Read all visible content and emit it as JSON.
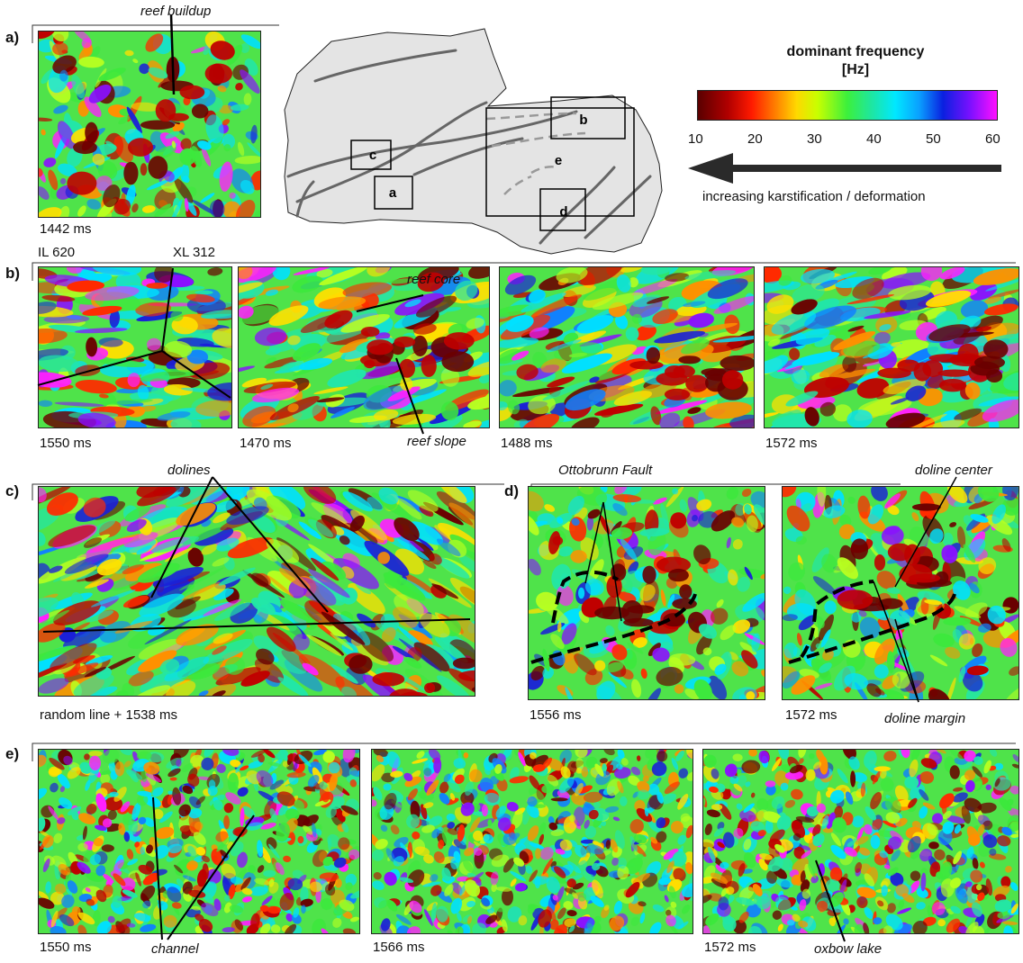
{
  "panel_labels": {
    "a": "a)",
    "b": "b)",
    "c": "c)",
    "d": "d)",
    "e": "e)"
  },
  "section_a": {
    "annotation": "reef buildup",
    "time": "1442 ms",
    "map": {
      "boxes": {
        "a": "a",
        "b": "b",
        "c": "c",
        "d": "d",
        "e": "e"
      }
    }
  },
  "colorbar": {
    "title_line1": "dominant frequency",
    "title_line2": "[Hz]",
    "ticks": [
      "10",
      "20",
      "30",
      "40",
      "50",
      "60"
    ],
    "arrow_caption": "increasing karstification / deformation"
  },
  "section_b": {
    "inline": "IL 620",
    "crossline": "XL 312",
    "times": [
      "1550 ms",
      "1470 ms",
      "1488 ms",
      "1572 ms"
    ],
    "annotations": {
      "core": "reef core",
      "slope": "reef slope"
    }
  },
  "section_c": {
    "annotation": "dolines",
    "time": "random line + 1538 ms"
  },
  "section_d": {
    "fault": "Ottobrunn Fault",
    "center": "doline center",
    "margin": "doline margin",
    "times": [
      "1556 ms",
      "1572 ms"
    ]
  },
  "section_e": {
    "times": [
      "1550 ms",
      "1566 ms",
      "1572 ms"
    ],
    "channel": "channel",
    "oxbow": "oxbow lake"
  },
  "palette": [
    "#6a0000",
    "#c00000",
    "#ff2a00",
    "#ff9000",
    "#ffe000",
    "#b8ff20",
    "#3ce83c",
    "#22e6a8",
    "#00e0ff",
    "#1080ff",
    "#1a20d8",
    "#8a10ff",
    "#ff20ff"
  ],
  "base_color": "#4fe34a"
}
